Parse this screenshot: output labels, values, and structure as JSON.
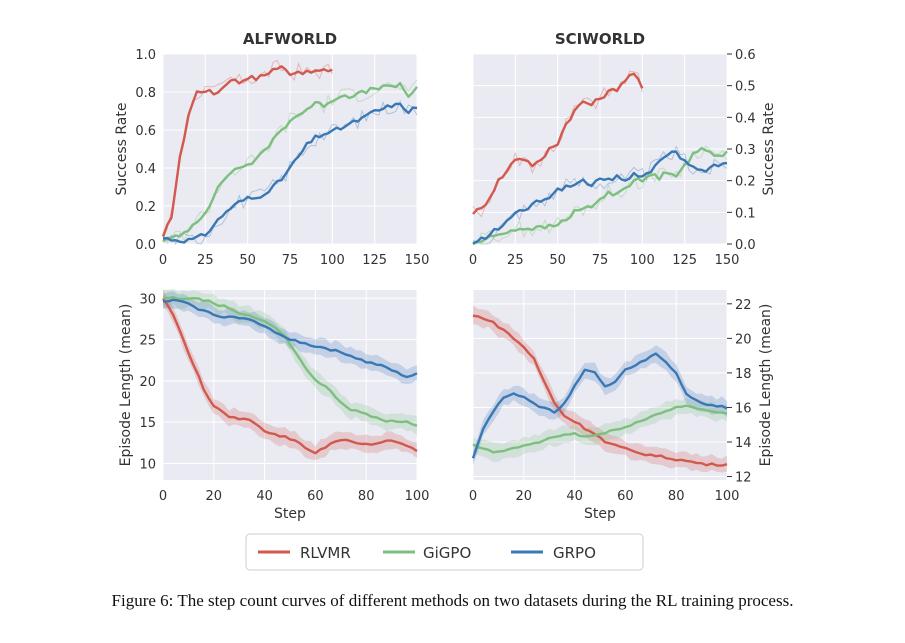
{
  "figure": {
    "caption": "Figure 6: The step count curves of different methods on two datasets during the RL training process."
  },
  "legend": {
    "entries": [
      {
        "name": "RLVMR",
        "color": "#d1594e"
      },
      {
        "name": "GiGPO",
        "color": "#7dbf7f"
      },
      {
        "name": "GRPO",
        "color": "#3a78b4"
      }
    ]
  },
  "chart_data": [
    {
      "id": "alfworld-success",
      "type": "line",
      "title": "ALFWORLD",
      "xlabel": "",
      "ylabel": "Success Rate",
      "xlim": [
        0,
        150
      ],
      "ylim": [
        0,
        1.0
      ],
      "xticks": [
        0,
        25,
        50,
        75,
        100,
        125,
        150
      ],
      "yticks": [
        0.0,
        0.2,
        0.4,
        0.6,
        0.8,
        1.0
      ],
      "xtick_labels": [
        "0",
        "25",
        "50",
        "75",
        "100",
        "125",
        "150"
      ],
      "ytick_labels": [
        "0.0",
        "0.2",
        "0.4",
        "0.6",
        "0.8",
        "1.0"
      ],
      "yaxis_side": "left",
      "band": "raw",
      "series": [
        {
          "name": "RLVMR",
          "x": [
            0,
            5,
            10,
            15,
            20,
            25,
            30,
            35,
            40,
            45,
            50,
            55,
            60,
            65,
            70,
            75,
            80,
            85,
            90,
            95,
            100
          ],
          "values": [
            0.03,
            0.15,
            0.45,
            0.68,
            0.8,
            0.81,
            0.79,
            0.82,
            0.87,
            0.85,
            0.88,
            0.87,
            0.89,
            0.92,
            0.93,
            0.9,
            0.91,
            0.9,
            0.91,
            0.91,
            0.92
          ]
        },
        {
          "name": "GiGPO",
          "x": [
            0,
            10,
            15,
            20,
            25,
            30,
            35,
            40,
            45,
            50,
            55,
            60,
            65,
            70,
            75,
            80,
            85,
            90,
            95,
            100,
            105,
            110,
            115,
            120,
            125,
            130,
            135,
            140,
            145,
            150
          ],
          "values": [
            0.02,
            0.04,
            0.08,
            0.12,
            0.17,
            0.25,
            0.33,
            0.38,
            0.4,
            0.42,
            0.44,
            0.49,
            0.55,
            0.6,
            0.65,
            0.68,
            0.71,
            0.74,
            0.73,
            0.76,
            0.78,
            0.78,
            0.79,
            0.8,
            0.82,
            0.83,
            0.82,
            0.84,
            0.78,
            0.82
          ]
        },
        {
          "name": "GRPO",
          "x": [
            0,
            10,
            15,
            20,
            25,
            30,
            35,
            40,
            45,
            50,
            55,
            60,
            65,
            70,
            75,
            80,
            85,
            90,
            95,
            100,
            105,
            110,
            115,
            120,
            125,
            130,
            135,
            140,
            145,
            150
          ],
          "values": [
            0.03,
            0.02,
            0.02,
            0.03,
            0.05,
            0.1,
            0.15,
            0.19,
            0.22,
            0.24,
            0.24,
            0.27,
            0.3,
            0.34,
            0.4,
            0.46,
            0.52,
            0.56,
            0.58,
            0.59,
            0.61,
            0.63,
            0.65,
            0.67,
            0.7,
            0.71,
            0.73,
            0.73,
            0.7,
            0.72
          ]
        }
      ]
    },
    {
      "id": "sciworld-success",
      "type": "line",
      "title": "SCIWORLD",
      "xlabel": "",
      "ylabel": "Success Rate",
      "xlim": [
        0,
        150
      ],
      "ylim": [
        0,
        0.6
      ],
      "xticks": [
        0,
        25,
        50,
        75,
        100,
        125,
        150
      ],
      "yticks": [
        0.0,
        0.1,
        0.2,
        0.3,
        0.4,
        0.5,
        0.6
      ],
      "xtick_labels": [
        "0",
        "25",
        "50",
        "75",
        "100",
        "125",
        "150"
      ],
      "ytick_labels": [
        "0.0",
        "0.1",
        "0.2",
        "0.3",
        "0.4",
        "0.5",
        "0.6"
      ],
      "yaxis_side": "right",
      "band": "raw",
      "series": [
        {
          "name": "RLVMR",
          "x": [
            0,
            5,
            10,
            15,
            20,
            25,
            30,
            35,
            40,
            45,
            50,
            55,
            60,
            65,
            70,
            75,
            80,
            85,
            90,
            95,
            100
          ],
          "values": [
            0.1,
            0.11,
            0.15,
            0.2,
            0.23,
            0.27,
            0.27,
            0.25,
            0.26,
            0.3,
            0.32,
            0.38,
            0.42,
            0.45,
            0.44,
            0.46,
            0.48,
            0.49,
            0.52,
            0.54,
            0.49
          ]
        },
        {
          "name": "GiGPO",
          "x": [
            0,
            10,
            20,
            30,
            40,
            50,
            55,
            60,
            65,
            70,
            75,
            80,
            85,
            90,
            95,
            100,
            105,
            110,
            115,
            120,
            125,
            130,
            135,
            140,
            145,
            150
          ],
          "values": [
            0.0,
            0.02,
            0.04,
            0.05,
            0.05,
            0.06,
            0.08,
            0.1,
            0.11,
            0.12,
            0.14,
            0.16,
            0.16,
            0.18,
            0.2,
            0.2,
            0.22,
            0.21,
            0.23,
            0.22,
            0.25,
            0.28,
            0.3,
            0.29,
            0.28,
            0.29
          ]
        },
        {
          "name": "GRPO",
          "x": [
            0,
            10,
            15,
            20,
            25,
            30,
            35,
            40,
            45,
            50,
            55,
            60,
            65,
            70,
            75,
            80,
            85,
            90,
            95,
            100,
            105,
            110,
            115,
            120,
            125,
            130,
            135,
            140,
            145,
            150
          ],
          "values": [
            0.0,
            0.03,
            0.05,
            0.07,
            0.1,
            0.11,
            0.12,
            0.14,
            0.15,
            0.17,
            0.18,
            0.19,
            0.2,
            0.19,
            0.2,
            0.2,
            0.21,
            0.2,
            0.22,
            0.22,
            0.23,
            0.26,
            0.28,
            0.29,
            0.26,
            0.24,
            0.23,
            0.24,
            0.25,
            0.26
          ]
        }
      ]
    },
    {
      "id": "alfworld-length",
      "type": "line",
      "title": "",
      "xlabel": "Step",
      "ylabel": "Episode Length (mean)",
      "xlim": [
        0,
        100
      ],
      "ylim": [
        8,
        31
      ],
      "xticks": [
        0,
        20,
        40,
        60,
        80,
        100
      ],
      "yticks": [
        10,
        15,
        20,
        25,
        30
      ],
      "xtick_labels": [
        "0",
        "20",
        "40",
        "60",
        "80",
        "100"
      ],
      "ytick_labels": [
        "10",
        "15",
        "20",
        "25",
        "30"
      ],
      "yaxis_side": "left",
      "band": "ci",
      "series": [
        {
          "name": "RLVMR",
          "x": [
            0,
            4,
            8,
            12,
            16,
            20,
            24,
            28,
            32,
            36,
            40,
            44,
            48,
            52,
            56,
            60,
            64,
            68,
            72,
            76,
            80,
            84,
            88,
            92,
            96,
            100
          ],
          "values": [
            30,
            28,
            25,
            22,
            19,
            17,
            16,
            15.5,
            15.4,
            15,
            14,
            13.5,
            13.2,
            12.8,
            12,
            11.2,
            12,
            12.8,
            12.8,
            12.4,
            12.3,
            12.4,
            12.8,
            12.5,
            12.2,
            11.5
          ]
        },
        {
          "name": "GiGPO",
          "x": [
            0,
            4,
            8,
            12,
            16,
            20,
            24,
            28,
            32,
            36,
            40,
            44,
            48,
            52,
            56,
            60,
            64,
            68,
            72,
            76,
            80,
            84,
            88,
            92,
            96,
            100
          ],
          "values": [
            30,
            30,
            30,
            29.9,
            29.8,
            29.4,
            29,
            28.4,
            28,
            27.7,
            27.2,
            26.5,
            25.5,
            23.5,
            21.5,
            20,
            19.4,
            18,
            16.8,
            16.3,
            16,
            15.6,
            15.2,
            15.1,
            15,
            14.5
          ]
        },
        {
          "name": "GRPO",
          "x": [
            0,
            4,
            8,
            12,
            16,
            20,
            24,
            28,
            32,
            36,
            40,
            44,
            48,
            52,
            56,
            60,
            64,
            68,
            72,
            76,
            80,
            84,
            88,
            92,
            96,
            100
          ],
          "values": [
            29.5,
            29.8,
            29.5,
            29,
            28.5,
            28,
            27.8,
            27.7,
            27.5,
            27.2,
            26.5,
            26,
            25.3,
            24.9,
            24.5,
            24.2,
            24,
            23.6,
            23.3,
            22.8,
            22.3,
            22,
            21.6,
            21,
            20.5,
            20.8
          ]
        }
      ]
    },
    {
      "id": "sciworld-length",
      "type": "line",
      "title": "",
      "xlabel": "Step",
      "ylabel": "Episode Length (mean)",
      "xlim": [
        0,
        100
      ],
      "ylim": [
        11.8,
        22.8
      ],
      "xticks": [
        0,
        20,
        40,
        60,
        80,
        100
      ],
      "yticks": [
        12,
        14,
        16,
        18,
        20,
        22
      ],
      "xtick_labels": [
        "0",
        "20",
        "40",
        "60",
        "80",
        "100"
      ],
      "ytick_labels": [
        "12",
        "14",
        "16",
        "18",
        "20",
        "22"
      ],
      "yaxis_side": "right",
      "band": "ci",
      "series": [
        {
          "name": "RLVMR",
          "x": [
            0,
            4,
            8,
            12,
            16,
            20,
            24,
            28,
            32,
            36,
            40,
            44,
            48,
            52,
            56,
            60,
            64,
            68,
            72,
            76,
            80,
            84,
            88,
            92,
            96,
            100
          ],
          "values": [
            21.3,
            21.2,
            20.9,
            20.5,
            20.0,
            19.5,
            18.8,
            17.5,
            16.3,
            15.5,
            15.2,
            14.8,
            14.5,
            14.0,
            13.8,
            13.6,
            13.4,
            13.3,
            13.2,
            13.1,
            13.0,
            12.9,
            12.8,
            12.7,
            12.7,
            12.7
          ]
        },
        {
          "name": "GiGPO",
          "x": [
            0,
            4,
            8,
            12,
            16,
            20,
            24,
            28,
            32,
            36,
            40,
            44,
            48,
            52,
            56,
            60,
            64,
            68,
            72,
            76,
            80,
            84,
            88,
            92,
            96,
            100
          ],
          "values": [
            13.8,
            13.6,
            13.4,
            13.5,
            13.6,
            13.8,
            13.9,
            14.1,
            14.3,
            14.4,
            14.5,
            14.3,
            14.4,
            14.5,
            14.7,
            14.9,
            15.1,
            15.3,
            15.6,
            15.8,
            16.0,
            16.1,
            16.0,
            15.8,
            15.7,
            15.6
          ]
        },
        {
          "name": "GRPO",
          "x": [
            0,
            4,
            8,
            12,
            16,
            20,
            24,
            28,
            32,
            36,
            40,
            44,
            48,
            52,
            56,
            60,
            64,
            68,
            72,
            76,
            80,
            84,
            88,
            92,
            96,
            100
          ],
          "values": [
            13.1,
            14.8,
            15.8,
            16.5,
            16.8,
            16.6,
            16.2,
            16.0,
            15.7,
            16.2,
            17.2,
            18.2,
            18.0,
            17.2,
            17.5,
            18.2,
            18.4,
            18.8,
            19.1,
            18.6,
            18.0,
            16.8,
            16.4,
            16.2,
            16.1,
            16.0
          ]
        }
      ]
    }
  ]
}
